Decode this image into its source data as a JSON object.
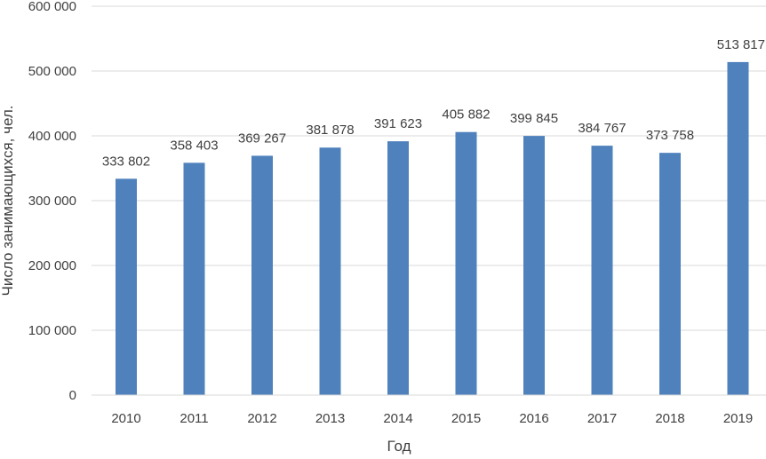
{
  "chart_data": {
    "type": "bar",
    "categories": [
      "2010",
      "2011",
      "2012",
      "2013",
      "2014",
      "2015",
      "2016",
      "2017",
      "2018",
      "2019"
    ],
    "values": [
      333802,
      358403,
      369267,
      381878,
      391623,
      405882,
      399845,
      384767,
      373758,
      513817
    ],
    "data_labels": [
      "333 802",
      "358 403",
      "369 267",
      "381 878",
      "391 623",
      "405 882",
      "399 845",
      "384 767",
      "373 758",
      "513 817"
    ],
    "xlabel": "Год",
    "ylabel": "Число занимающихся, чел.",
    "ylim": [
      0,
      600000
    ],
    "yticks": [
      0,
      100000,
      200000,
      300000,
      400000,
      500000,
      600000
    ],
    "ytick_labels": [
      "0",
      "100 000",
      "200 000",
      "300 000",
      "400 000",
      "500 000",
      "600 000"
    ],
    "grid": true,
    "legend": "none",
    "bar_color": "#4f81bd",
    "grid_color": "#d9d9d9"
  }
}
